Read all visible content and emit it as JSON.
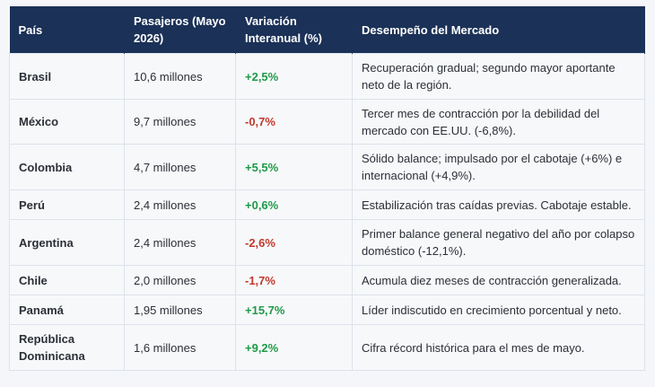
{
  "table": {
    "headers": [
      "País",
      "Pasajeros (Mayo 2026)",
      "Variación Interanual (%)",
      "Desempeño del Mercado"
    ],
    "rows": [
      {
        "country": "Brasil",
        "passengers": "10,6 millones",
        "change": "+2,5%",
        "trend": "pos",
        "performance": "Recuperación gradual; segundo mayor aportante neto de la región."
      },
      {
        "country": "México",
        "passengers": "9,7 millones",
        "change": "-0,7%",
        "trend": "neg",
        "performance": "Tercer mes de contracción por la debilidad del mercado con EE.UU. (-6,8%)."
      },
      {
        "country": "Colombia",
        "passengers": "4,7 millones",
        "change": "+5,5%",
        "trend": "pos",
        "performance": "Sólido balance; impulsado por el cabotaje (+6%) e internacional (+4,9%)."
      },
      {
        "country": "Perú",
        "passengers": "2,4 millones",
        "change": "+0,6%",
        "trend": "pos",
        "performance": "Estabilización tras caídas previas. Cabotaje estable."
      },
      {
        "country": "Argentina",
        "passengers": "2,4 millones",
        "change": "-2,6%",
        "trend": "neg",
        "performance": "Primer balance general negativo del año por colapso doméstico (-12,1%)."
      },
      {
        "country": "Chile",
        "passengers": "2,0 millones",
        "change": "-1,7%",
        "trend": "neg",
        "performance": "Acumula diez meses de contracción generalizada."
      },
      {
        "country": "Panamá",
        "passengers": "1,95 millones",
        "change": "+15,7%",
        "trend": "pos",
        "performance": "Líder indiscutido en crecimiento porcentual y neto."
      },
      {
        "country": "República Dominicana",
        "passengers": "1,6 millones",
        "change": "+9,2%",
        "trend": "pos",
        "performance": "Cifra récord histórica para el mes de mayo."
      }
    ]
  },
  "colors": {
    "header_bg": "#1b3157",
    "positive": "#1e9a48",
    "negative": "#c0392b"
  }
}
